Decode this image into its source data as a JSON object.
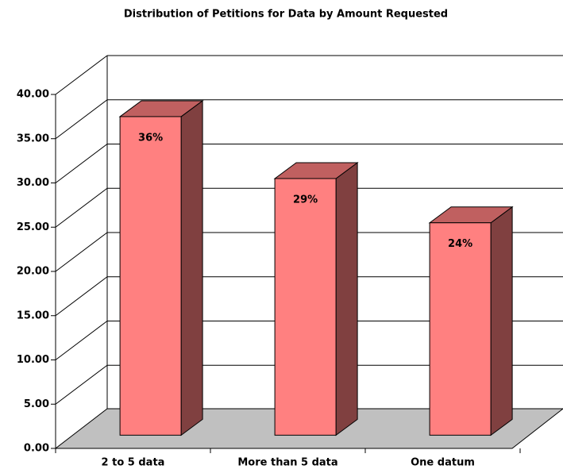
{
  "chart_data": {
    "type": "bar3d",
    "title": "Distribution of Petitions for Data by Amount Requested",
    "categories": [
      "2 to 5 data",
      "More than 5 data",
      "One datum"
    ],
    "values": [
      36,
      29,
      24
    ],
    "value_labels": [
      "36%",
      "29%",
      "24%"
    ],
    "color": "#ff8080",
    "ylim": [
      0,
      40
    ],
    "yticks": [
      {
        "value": 0,
        "label": "0.00"
      },
      {
        "value": 5,
        "label": "5.00"
      },
      {
        "value": 10,
        "label": "10.00"
      },
      {
        "value": 15,
        "label": "15.00"
      },
      {
        "value": 20,
        "label": "20.00"
      },
      {
        "value": 25,
        "label": "25.00"
      },
      {
        "value": 30,
        "label": "30.00"
      },
      {
        "value": 35,
        "label": "35.00"
      },
      {
        "value": 40,
        "label": "40.00"
      }
    ],
    "grid": true
  }
}
